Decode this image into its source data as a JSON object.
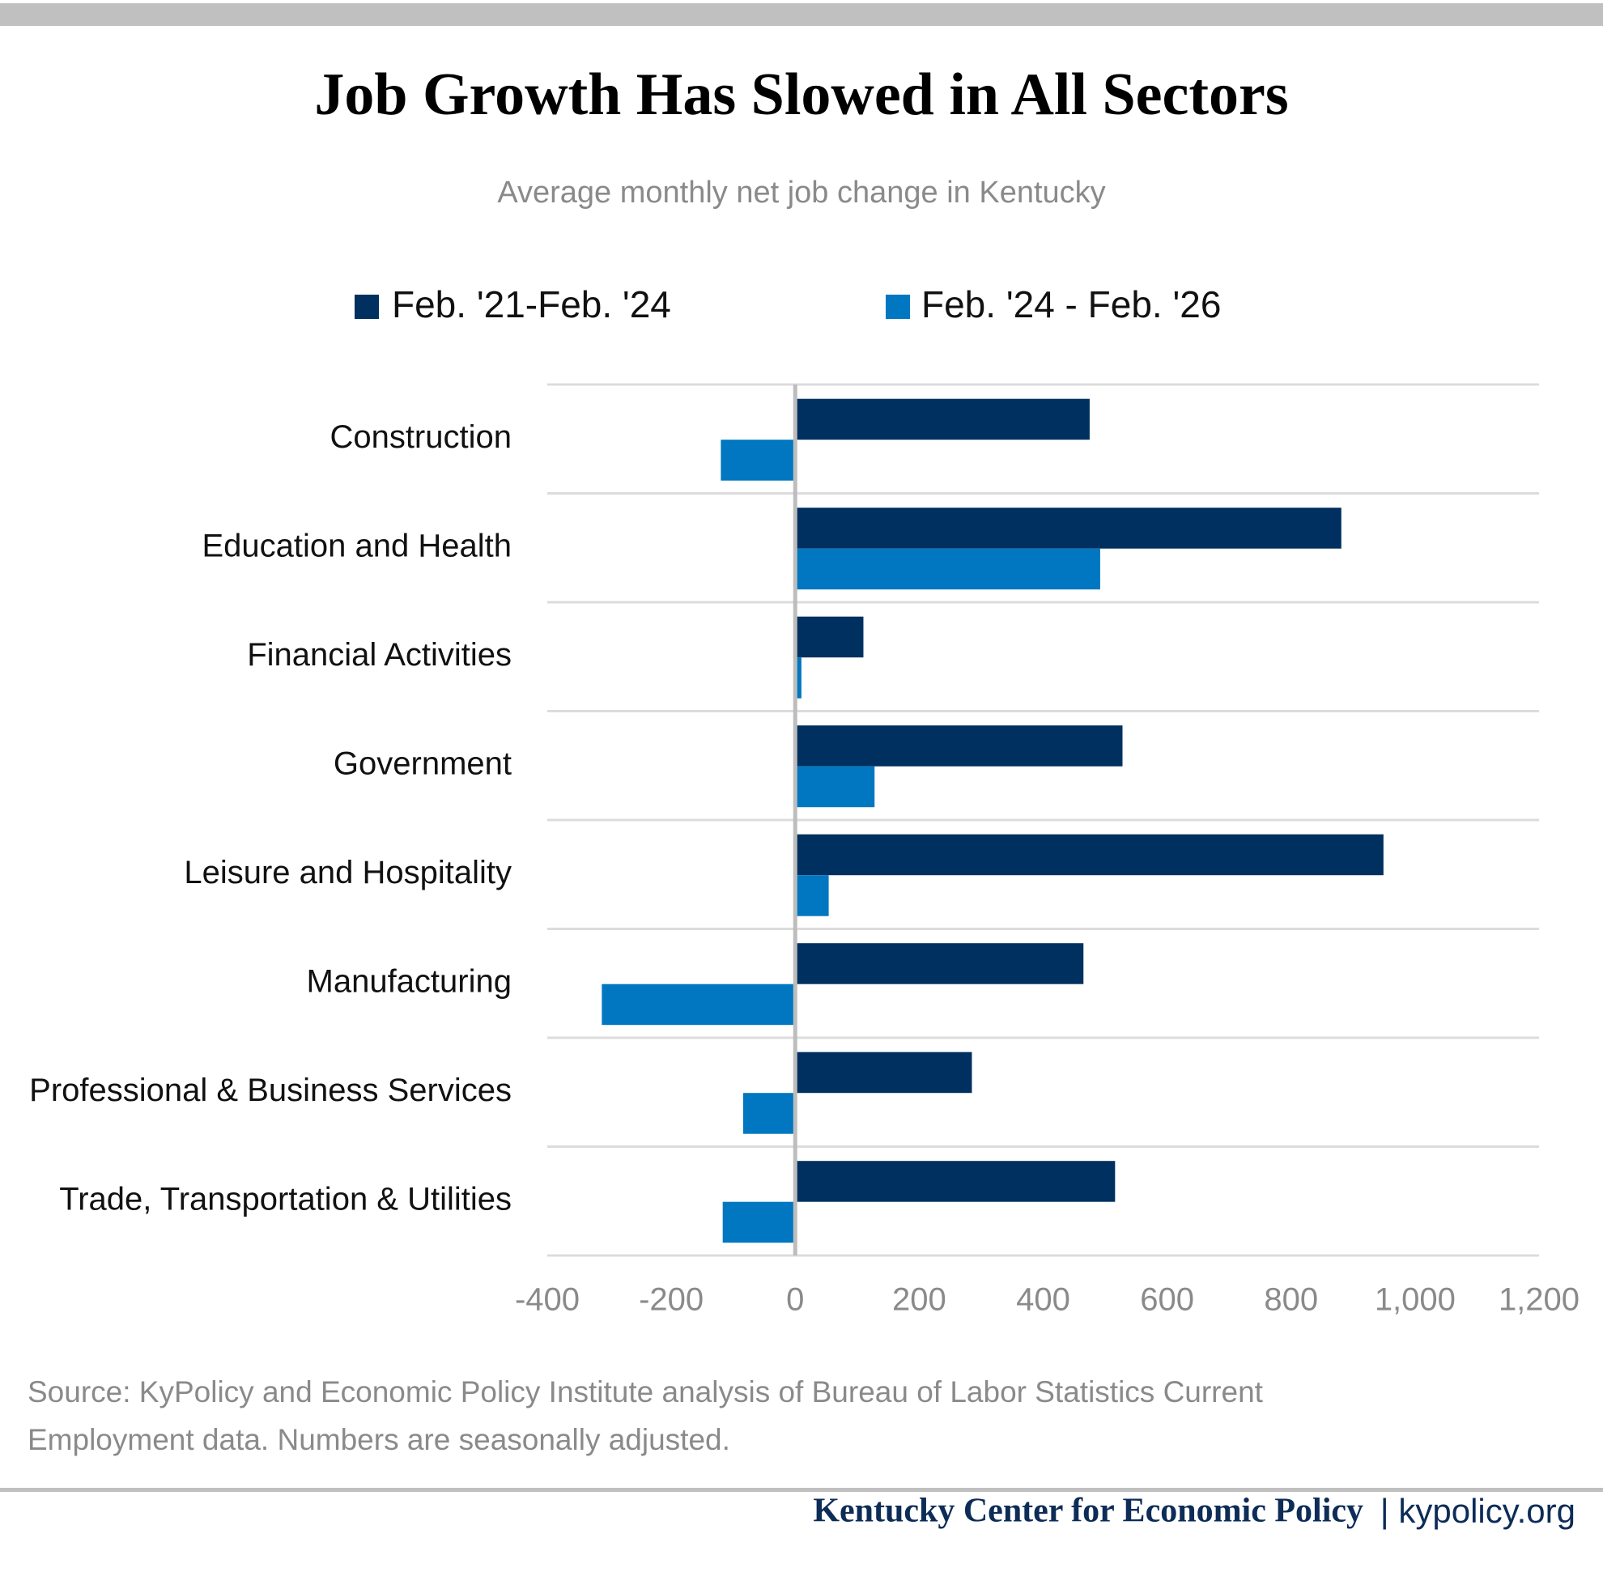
{
  "chart_data": {
    "type": "bar",
    "orientation": "horizontal",
    "title": "Job Growth Has Slowed in All Sectors",
    "subtitle": "Average monthly net job change in Kentucky",
    "categories": [
      "Construction",
      "Education and Health",
      "Financial Activities",
      "Government",
      "Leisure and Hospitality",
      "Manufacturing",
      "Professional & Business Services",
      "Trade, Transportation & Utilities"
    ],
    "series": [
      {
        "name": "Feb. '21-Feb. '24",
        "color": "#00305f",
        "values": [
          475,
          881,
          110,
          528,
          949,
          465,
          285,
          516
        ]
      },
      {
        "name": "Feb. '24 - Feb. '26",
        "color": "#0077c0",
        "values": [
          -120,
          492,
          10,
          128,
          54,
          -312,
          -84,
          -117
        ]
      }
    ],
    "xlim": [
      -400,
      1200
    ],
    "xticks": [
      -400,
      -200,
      0,
      200,
      400,
      600,
      800,
      {
        "value": 1000,
        "label": "1,000"
      },
      {
        "value": 1200,
        "label": "1,200"
      }
    ],
    "grid": true,
    "source": [
      "Source: KyPolicy and Economic Policy Institute analysis of Bureau of Labor Statistics Current",
      "Employment data. Numbers are seasonally adjusted."
    ],
    "footer": {
      "organization": "Kentucky Center for Economic Policy",
      "website": "| kypolicy.org"
    }
  }
}
